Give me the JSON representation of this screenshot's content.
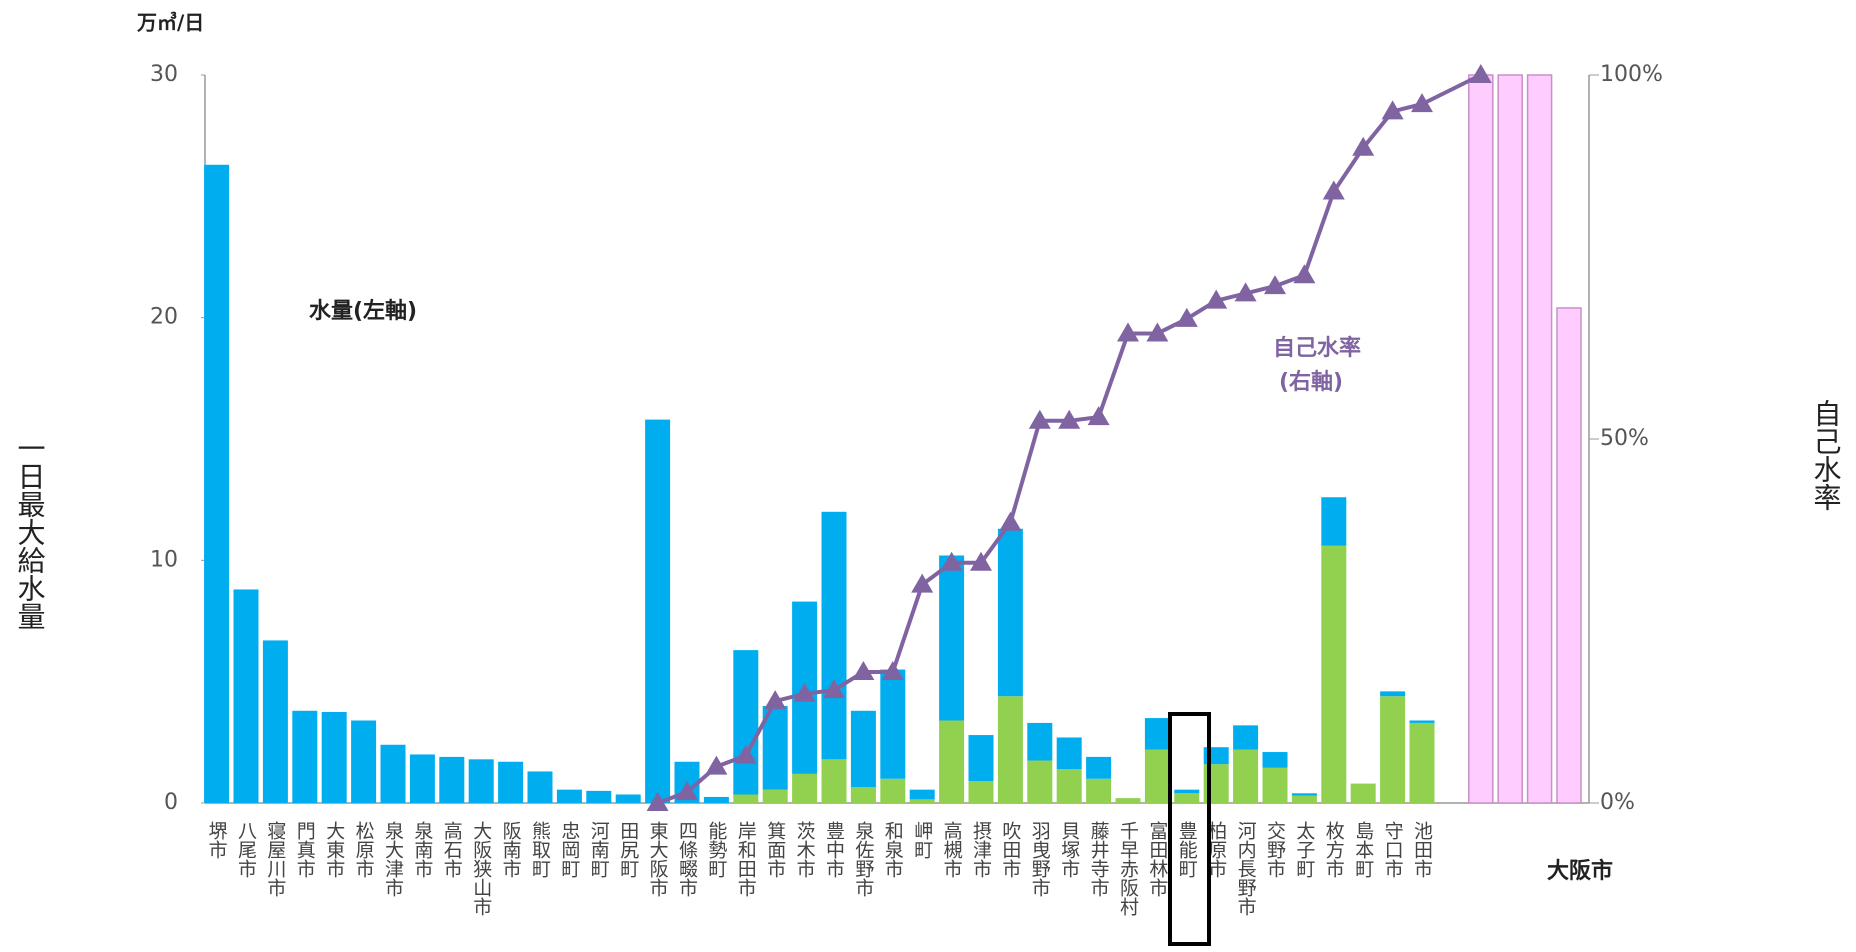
{
  "chart_data": {
    "type": "bar",
    "unit_label": "万㎥/日",
    "y_label": "一日最大給水量",
    "y2_label": "自己水率",
    "annotations": [
      "水量(左軸)",
      "自己水率",
      "(右軸)"
    ],
    "group_label": "大阪市",
    "categories": [
      "堺市",
      "八尾市",
      "寝屋川市",
      "門真市",
      "大東市",
      "松原市",
      "泉大津市",
      "泉南市",
      "高石市",
      "大阪狭山市",
      "阪南市",
      "熊取町",
      "忠岡町",
      "河南町",
      "田尻町",
      "東大阪市",
      "四條畷市",
      "能勢町",
      "岸和田市",
      "箕面市",
      "茨木市",
      "豊中市",
      "泉佐野市",
      "和泉市",
      "岬町",
      "高槻市",
      "摂津市",
      "吹田市",
      "羽曳野市",
      "貝塚市",
      "藤井寺市",
      "千早赤阪村",
      "富田林市",
      "豊能町",
      "柏原市",
      "河内長野市",
      "交野市",
      "太子町",
      "枚方市",
      "島本町",
      "守口市",
      "池田市",
      null,
      null,
      null,
      null
    ],
    "series": [
      {
        "type": "bar",
        "color": "#92d050",
        "values": [
          0,
          0,
          0,
          0,
          0,
          0,
          0,
          0,
          0,
          0,
          0,
          0,
          0,
          0,
          0,
          0,
          0,
          0,
          0.35,
          0.55,
          1.2,
          1.8,
          0.65,
          1.0,
          0.15,
          3.4,
          0.9,
          4.4,
          1.75,
          1.4,
          1.0,
          0.2,
          2.2,
          0.4,
          1.6,
          2.2,
          1.45,
          0.3,
          10.6,
          0.8,
          4.4,
          3.3,
          null,
          null,
          null,
          null
        ]
      },
      {
        "type": "bar",
        "color": "#00aeef",
        "values": [
          26.3,
          8.8,
          6.7,
          3.8,
          3.75,
          3.4,
          2.4,
          2.0,
          1.9,
          1.8,
          1.7,
          1.3,
          0.55,
          0.5,
          0.35,
          15.8,
          1.7,
          0.25,
          5.95,
          3.45,
          7.1,
          10.2,
          3.15,
          4.5,
          0.4,
          6.8,
          1.9,
          6.9,
          1.55,
          1.3,
          0.9,
          0,
          1.3,
          0.15,
          0.7,
          1.0,
          0.65,
          0.1,
          2.0,
          0,
          0.2,
          0.1,
          null,
          null,
          null,
          null
        ]
      },
      {
        "type": "bar",
        "axis": "y2",
        "color": "#ffccff",
        "values": [
          null,
          null,
          null,
          null,
          null,
          null,
          null,
          null,
          null,
          null,
          null,
          null,
          null,
          null,
          null,
          null,
          null,
          null,
          null,
          null,
          null,
          null,
          null,
          null,
          null,
          null,
          null,
          null,
          null,
          null,
          null,
          null,
          null,
          null,
          null,
          null,
          null,
          null,
          null,
          null,
          null,
          null,
          100,
          100,
          100,
          68
        ]
      },
      {
        "type": "line",
        "axis": "y2",
        "color": "#8064a2",
        "values": [
          null,
          null,
          null,
          null,
          null,
          null,
          null,
          null,
          null,
          null,
          null,
          null,
          null,
          null,
          null,
          0,
          1.5,
          5,
          6.5,
          14,
          15,
          15.5,
          18,
          18,
          30,
          33,
          33,
          38.5,
          52.5,
          52.5,
          53,
          64.5,
          64.5,
          66.5,
          69,
          70,
          71,
          72.5,
          84,
          90,
          95,
          96,
          100,
          null,
          null,
          null
        ]
      }
    ],
    "ylim": [
      0,
      30
    ],
    "yticks": [
      0,
      10,
      20,
      30
    ],
    "y2lim": [
      0,
      100
    ],
    "y2ticks": [
      {
        "value": 0,
        "label": "0%"
      },
      {
        "value": 50,
        "label": "50%"
      },
      {
        "value": 100,
        "label": "100%"
      }
    ]
  }
}
